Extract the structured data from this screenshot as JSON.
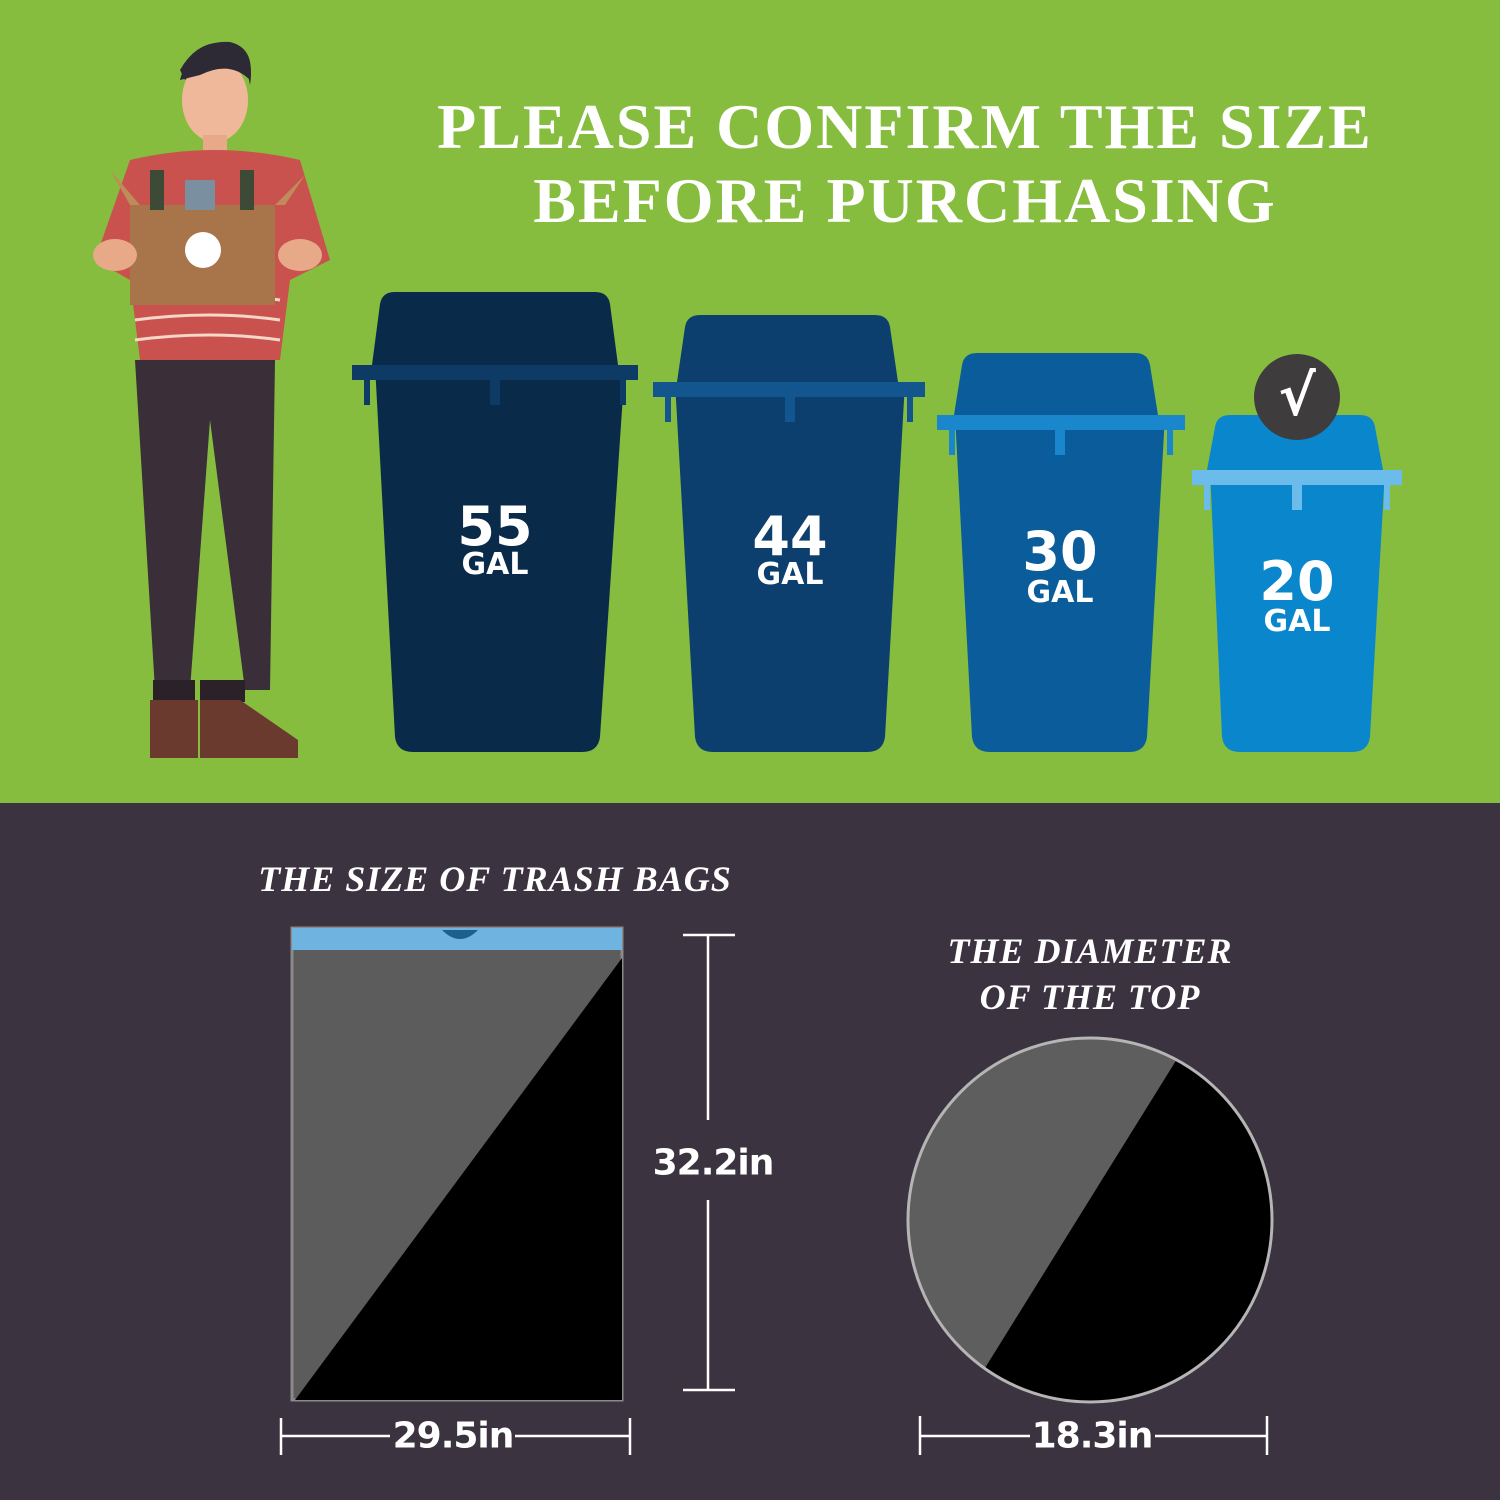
{
  "header": {
    "line1": "PLEASE CONFIRM THE SIZE",
    "line2": "BEFORE PURCHASING"
  },
  "cans": [
    {
      "number": "55",
      "unit": "GAL",
      "color": "#0a2a4a",
      "rim_color": "#0e3a66",
      "selected": false
    },
    {
      "number": "44",
      "unit": "GAL",
      "color": "#0d3f6e",
      "rim_color": "#12558f",
      "selected": false
    },
    {
      "number": "30",
      "unit": "GAL",
      "color": "#0b5c9a",
      "rim_color": "#1a86cc",
      "selected": false
    },
    {
      "number": "20",
      "unit": "GAL",
      "color": "#0a87cc",
      "rim_color": "#6bbcea",
      "selected": true
    }
  ],
  "check_mark": "√",
  "bag": {
    "title": "THE SIZE OF TRASH BAGS",
    "height": "32.2in",
    "width": "29.5in"
  },
  "top_diameter": {
    "title_line1": "THE DIAMETER",
    "title_line2": "OF THE TOP",
    "width": "18.3in"
  },
  "colors": {
    "green_bg": "#86bd3e",
    "dark_bg": "#3c3340",
    "bag_strip": "#6fb3e0"
  }
}
